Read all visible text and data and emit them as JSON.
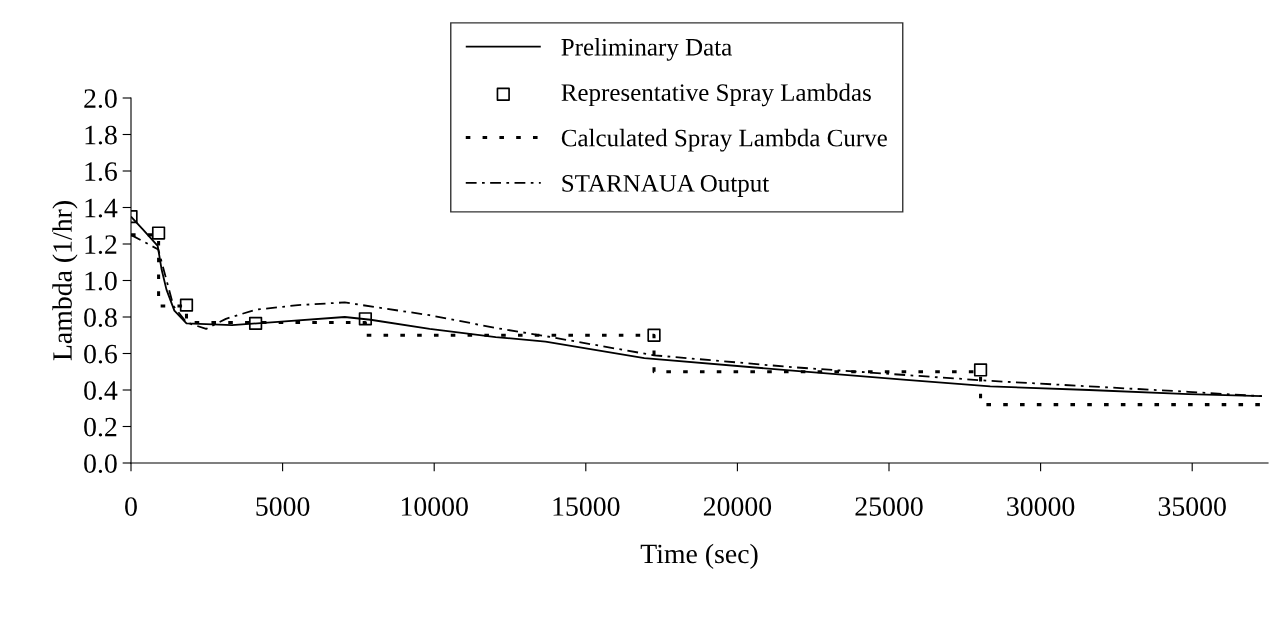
{
  "chart_data": {
    "type": "line",
    "xlabel": "Time (sec)",
    "ylabel": "Lambda (1/hr)",
    "xlim": [
      0,
      37500
    ],
    "xticks": [
      0,
      5000,
      10000,
      15000,
      20000,
      25000,
      30000,
      35000
    ],
    "ylim": [
      0,
      2.0
    ],
    "yticks": [
      {
        "value": 0,
        "label": "0.0"
      },
      0.2,
      0.4,
      0.6,
      0.8,
      {
        "value": 1,
        "label": "1.0"
      },
      1.2,
      1.4,
      1.6,
      1.8,
      {
        "value": 2,
        "label": "2.0"
      }
    ],
    "grid": false,
    "legend": "top",
    "series": [
      {
        "name": "Preliminary Data",
        "line_style": "solid",
        "marker": "none",
        "color": "#000000",
        "x": [
          0,
          390,
          880,
          1010,
          1170,
          1430,
          1830,
          3330,
          4960,
          7050,
          7900,
          9850,
          12030,
          13670,
          16930,
          21820,
          25570,
          28340,
          31600,
          34870,
          37300
        ],
        "values": [
          1.35,
          1.28,
          1.19,
          1.06,
          0.95,
          0.835,
          0.765,
          0.755,
          0.775,
          0.8,
          0.785,
          0.735,
          0.69,
          0.665,
          0.575,
          0.506,
          0.455,
          0.42,
          0.4,
          0.377,
          0.366
        ]
      },
      {
        "name": "Representative Spray Lambdas",
        "type": "scatter",
        "marker": "square",
        "color": "#000000",
        "x": [
          0,
          910,
          1830,
          4110,
          7730,
          17250,
          28020
        ],
        "values": [
          1.35,
          1.26,
          0.865,
          0.765,
          0.79,
          0.7,
          0.51
        ]
      },
      {
        "name": "Calculated Spray Lambda Curve",
        "type": "step",
        "line_style": "dotted",
        "marker": "none",
        "color": "#000000",
        "x": [
          0,
          910,
          1830,
          7730,
          17250,
          28020,
          37300
        ],
        "values": [
          1.25,
          0.86,
          0.77,
          0.7,
          0.5,
          0.32,
          0.32
        ]
      },
      {
        "name": "STARNAUA Output",
        "type": "line",
        "line_style": "dashdot",
        "marker": "none",
        "color": "#000000",
        "x": [
          0,
          900,
          1400,
          1830,
          2480,
          3130,
          4110,
          5510,
          7050,
          8020,
          9850,
          12030,
          13670,
          17250,
          21820,
          28340,
          34870,
          37300
        ],
        "values": [
          1.25,
          1.17,
          0.86,
          0.77,
          0.735,
          0.79,
          0.84,
          0.865,
          0.88,
          0.855,
          0.81,
          0.74,
          0.695,
          0.59,
          0.525,
          0.45,
          0.39,
          0.366
        ]
      }
    ]
  }
}
